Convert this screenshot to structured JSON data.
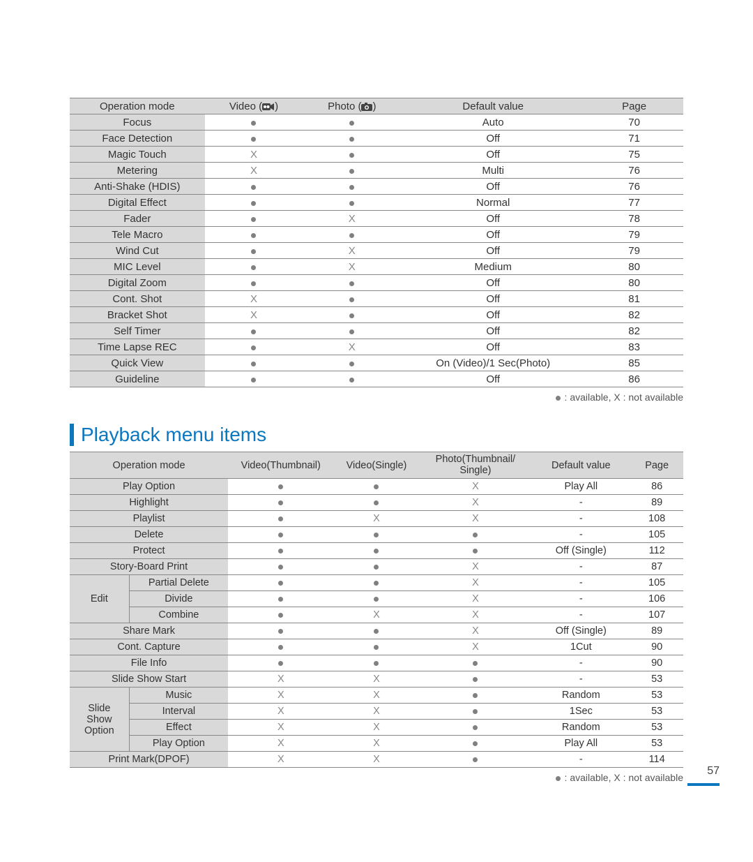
{
  "page_number": "57",
  "legend_text": ": available, X : not available",
  "section2_title": "Playback menu items",
  "table1": {
    "headers": [
      "Operation mode",
      "Video",
      "Photo",
      "Default value",
      "Page"
    ],
    "rows": [
      {
        "label": "Focus",
        "video": "dot",
        "photo": "dot",
        "def": "Auto",
        "page": "70"
      },
      {
        "label": "Face Detection",
        "video": "dot",
        "photo": "dot",
        "def": "Off",
        "page": "71"
      },
      {
        "label": "Magic Touch",
        "video": "X",
        "photo": "dot",
        "def": "Off",
        "page": "75"
      },
      {
        "label": "Metering",
        "video": "X",
        "photo": "dot",
        "def": "Multi",
        "page": "76"
      },
      {
        "label": "Anti-Shake (HDIS)",
        "video": "dot",
        "photo": "dot",
        "def": "Off",
        "page": "76"
      },
      {
        "label": "Digital Effect",
        "video": "dot",
        "photo": "dot",
        "def": "Normal",
        "page": "77"
      },
      {
        "label": "Fader",
        "video": "dot",
        "photo": "X",
        "def": "Off",
        "page": "78"
      },
      {
        "label": "Tele Macro",
        "video": "dot",
        "photo": "dot",
        "def": "Off",
        "page": "79"
      },
      {
        "label": "Wind Cut",
        "video": "dot",
        "photo": "X",
        "def": "Off",
        "page": "79"
      },
      {
        "label": "MIC Level",
        "video": "dot",
        "photo": "X",
        "def": "Medium",
        "page": "80"
      },
      {
        "label": "Digital Zoom",
        "video": "dot",
        "photo": "dot",
        "def": "Off",
        "page": "80"
      },
      {
        "label": "Cont. Shot",
        "video": "X",
        "photo": "dot",
        "def": "Off",
        "page": "81"
      },
      {
        "label": "Bracket Shot",
        "video": "X",
        "photo": "dot",
        "def": "Off",
        "page": "82"
      },
      {
        "label": "Self Timer",
        "video": "dot",
        "photo": "dot",
        "def": "Off",
        "page": "82"
      },
      {
        "label": "Time Lapse REC",
        "video": "dot",
        "photo": "X",
        "def": "Off",
        "page": "83"
      },
      {
        "label": "Quick View",
        "video": "dot",
        "photo": "dot",
        "def": "On (Video)/1 Sec(Photo)",
        "page": "85"
      },
      {
        "label": "Guideline",
        "video": "dot",
        "photo": "dot",
        "def": "Off",
        "page": "86"
      }
    ]
  },
  "table2": {
    "headers": [
      "Operation mode",
      "Video(Thumbnail)",
      "Video(Single)",
      "Photo(Thumbnail/\nSingle)",
      "Default value",
      "Page"
    ],
    "rows": [
      {
        "group": "",
        "label": "Play Option",
        "c2": "dot",
        "c3": "dot",
        "c4": "X",
        "def": "Play All",
        "page": "86"
      },
      {
        "group": "",
        "label": "Highlight",
        "c2": "dot",
        "c3": "dot",
        "c4": "X",
        "def": "-",
        "page": "89"
      },
      {
        "group": "",
        "label": "Playlist",
        "c2": "dot",
        "c3": "X",
        "c4": "X",
        "def": "-",
        "page": "108"
      },
      {
        "group": "",
        "label": "Delete",
        "c2": "dot",
        "c3": "dot",
        "c4": "dot",
        "def": "-",
        "page": "105"
      },
      {
        "group": "",
        "label": "Protect",
        "c2": "dot",
        "c3": "dot",
        "c4": "dot",
        "def": "Off (Single)",
        "page": "112"
      },
      {
        "group": "",
        "label": "Story-Board Print",
        "c2": "dot",
        "c3": "dot",
        "c4": "X",
        "def": "-",
        "page": "87"
      },
      {
        "group": "Edit",
        "label": "Partial Delete",
        "c2": "dot",
        "c3": "dot",
        "c4": "X",
        "def": "-",
        "page": "105",
        "group_span": 3
      },
      {
        "group": "Edit",
        "label": "Divide",
        "c2": "dot",
        "c3": "dot",
        "c4": "X",
        "def": "-",
        "page": "106"
      },
      {
        "group": "Edit",
        "label": "Combine",
        "c2": "dot",
        "c3": "X",
        "c4": "X",
        "def": "-",
        "page": "107"
      },
      {
        "group": "",
        "label": "Share Mark",
        "c2": "dot",
        "c3": "dot",
        "c4": "X",
        "def": "Off (Single)",
        "page": "89"
      },
      {
        "group": "",
        "label": "Cont. Capture",
        "c2": "dot",
        "c3": "dot",
        "c4": "X",
        "def": "1Cut",
        "page": "90"
      },
      {
        "group": "",
        "label": "File Info",
        "c2": "dot",
        "c3": "dot",
        "c4": "dot",
        "def": "-",
        "page": "90"
      },
      {
        "group": "",
        "label": "Slide Show Start",
        "c2": "X",
        "c3": "X",
        "c4": "dot",
        "def": "-",
        "page": "53"
      },
      {
        "group": "Slide Show Option",
        "label": "Music",
        "c2": "X",
        "c3": "X",
        "c4": "dot",
        "def": "Random",
        "page": "53",
        "group_span": 4
      },
      {
        "group": "Slide Show Option",
        "label": "Interval",
        "c2": "X",
        "c3": "X",
        "c4": "dot",
        "def": "1Sec",
        "page": "53"
      },
      {
        "group": "Slide Show Option",
        "label": "Effect",
        "c2": "X",
        "c3": "X",
        "c4": "dot",
        "def": "Random",
        "page": "53"
      },
      {
        "group": "Slide Show Option",
        "label": "Play Option",
        "c2": "X",
        "c3": "X",
        "c4": "dot",
        "def": "Play All",
        "page": "53"
      },
      {
        "group": "",
        "label": "Print Mark(DPOF)",
        "c2": "X",
        "c3": "X",
        "c4": "dot",
        "def": "-",
        "page": "114"
      }
    ]
  }
}
